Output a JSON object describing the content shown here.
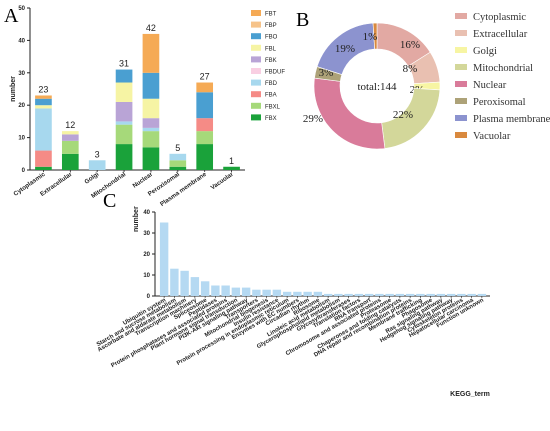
{
  "panels": {
    "a": "A",
    "b": "B",
    "c": "C"
  },
  "chart_data": [
    {
      "type": "bar",
      "stacked": true,
      "ylabel": "number",
      "ylim": [
        0,
        50
      ],
      "yticks": [
        0,
        10,
        20,
        30,
        40,
        50
      ],
      "categories": [
        "Cytoplasmic",
        "Extracellular",
        "Golgi",
        "Mitochondrial",
        "Nuclear",
        "Peroxisomal",
        "Plasma membrane",
        "Vacuolar"
      ],
      "totals": [
        23,
        12,
        3,
        31,
        42,
        5,
        27,
        1
      ],
      "legend_position": "right",
      "series": [
        {
          "name": "FBX",
          "color": "#1aa23a",
          "values": [
            1,
            5,
            0,
            8,
            7,
            1,
            8,
            1
          ]
        },
        {
          "name": "FBXL",
          "color": "#a6d97a",
          "values": [
            0,
            4,
            0,
            6,
            5,
            2,
            4,
            0
          ]
        },
        {
          "name": "FBA",
          "color": "#f58b86",
          "values": [
            5,
            0,
            0,
            0,
            0,
            0,
            4,
            0
          ]
        },
        {
          "name": "FBD",
          "color": "#a7d8ee",
          "values": [
            13,
            0,
            3,
            1,
            1,
            2,
            0,
            0
          ]
        },
        {
          "name": "FBDUF",
          "color": "#f9cfe2",
          "values": [
            0,
            0,
            0,
            0,
            0,
            0,
            0,
            0
          ]
        },
        {
          "name": "FBK",
          "color": "#b9a4d6",
          "values": [
            0,
            2,
            0,
            6,
            3,
            0,
            0,
            0
          ]
        },
        {
          "name": "FBL",
          "color": "#f6f4a4",
          "values": [
            1,
            1,
            0,
            6,
            6,
            0,
            0,
            0
          ]
        },
        {
          "name": "FBO",
          "color": "#4a9fd1",
          "values": [
            2,
            0,
            0,
            4,
            8,
            0,
            8,
            0
          ]
        },
        {
          "name": "FBP",
          "color": "#f6c38a",
          "values": [
            0,
            0,
            0,
            0,
            0,
            0,
            0,
            0
          ]
        },
        {
          "name": "FBT",
          "color": "#f5aa55",
          "values": [
            1,
            0,
            0,
            0,
            12,
            0,
            3,
            0
          ]
        }
      ]
    },
    {
      "type": "pie",
      "donut": true,
      "center_label": "total:144",
      "legend_position": "right",
      "slices": [
        {
          "name": "Cytoplasmic",
          "value": 16,
          "label": "16%",
          "color": "#e2a9a3"
        },
        {
          "name": "Extracellular",
          "value": 8,
          "label": "8%",
          "color": "#e9c0b1"
        },
        {
          "name": "Golgi",
          "value": 2,
          "label": "2%",
          "color": "#f7f5a3"
        },
        {
          "name": "Mitochondrial",
          "value": 22,
          "label": "22%",
          "color": "#d3d79a"
        },
        {
          "name": "Nuclear",
          "value": 29,
          "label": "29%",
          "color": "#d97b9a"
        },
        {
          "name": "Peroxisomal",
          "value": 3,
          "label": "3%",
          "color": "#ada278"
        },
        {
          "name": "Plasma membrane",
          "value": 19,
          "label": "19%",
          "color": "#8c93cf"
        },
        {
          "name": "Vacuolar",
          "value": 1,
          "label": "1%",
          "color": "#d9893e"
        }
      ]
    },
    {
      "type": "bar",
      "ylabel": "number",
      "xlabel": "KEGG_term",
      "ylim": [
        0,
        40
      ],
      "yticks": [
        0,
        10,
        20,
        30,
        40
      ],
      "bar_color": "#b5d9f2",
      "categories": [
        "Ubiquitin system",
        "Starch and sucrose metabolism",
        "Ascorbate and aldarate metabolism",
        "Transcription machinery",
        "Spliceosome",
        "Peptidases",
        "Protein phosphatases and associated proteins",
        "Plant hormone signal transduction",
        "PI3K-Akt signaling pathway",
        "Transporters",
        "Mitochondrial biogenesis",
        "Insulin resistance",
        "Protein processing in endoplasmic reticulum",
        "Enzymes with EC numbers",
        "Circadian rhythm",
        "Ribosome",
        "Linoleic acid metabolism",
        "Glycerophospholipid metabolism",
        "Glycosyltransferases",
        "Translation factors",
        "RNA transport",
        "Chromosome and associated proteins",
        "Proteasome",
        "Chaperones and folding catalysts",
        "DNA repair and recombination proteins",
        "Membrane trafficking",
        "Phagosome",
        "Ras signaling pathway",
        "Hedgehog signaling pathway",
        "Cytoskeleton proteins",
        "Hepatocellular carcinoma",
        "Function unknown"
      ],
      "values": [
        35,
        13,
        12,
        9,
        7,
        5,
        5,
        4,
        4,
        3,
        3,
        3,
        2,
        2,
        2,
        2,
        1,
        1,
        1,
        1,
        1,
        1,
        1,
        1,
        1,
        1,
        1,
        1,
        1,
        1,
        1,
        1
      ]
    }
  ]
}
